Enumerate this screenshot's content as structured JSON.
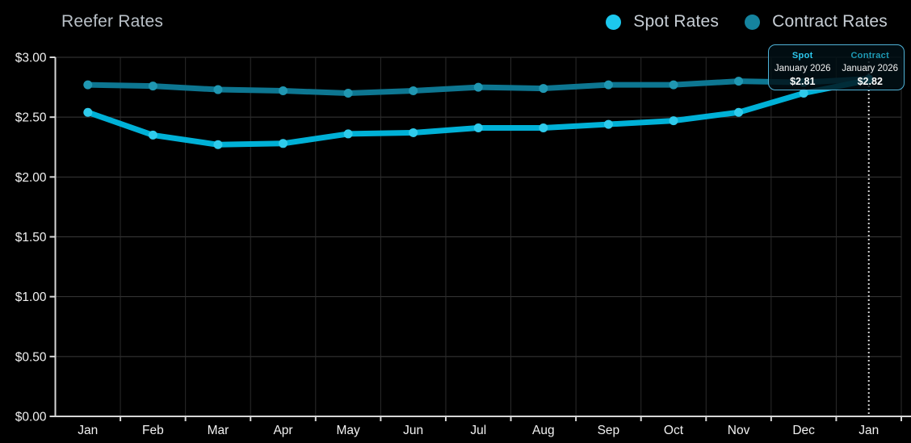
{
  "header": {
    "title": "Reefer Rates"
  },
  "legend": {
    "items": [
      {
        "label": "Spot Rates",
        "color": "#1cc8ee"
      },
      {
        "label": "Contract Rates",
        "color": "#15839e"
      }
    ]
  },
  "tooltip": {
    "columns": [
      {
        "series": "Spot",
        "date": "January 2026",
        "value": "$2.81",
        "color": "#2cc9ef"
      },
      {
        "series": "Contract",
        "date": "January 2026",
        "value": "$2.82",
        "color": "#1e9ab5"
      }
    ]
  },
  "chart_data": {
    "type": "line",
    "title": "Reefer Rates",
    "categories": [
      "Jan",
      "Feb",
      "Mar",
      "Apr",
      "May",
      "Jun",
      "Jul",
      "Aug",
      "Sep",
      "Oct",
      "Nov",
      "Dec",
      "Jan"
    ],
    "series": [
      {
        "name": "Spot Rates",
        "color": "#00b1d7",
        "marker_color": "#2fcbec",
        "values": [
          2.54,
          2.35,
          2.27,
          2.28,
          2.36,
          2.37,
          2.41,
          2.41,
          2.44,
          2.47,
          2.54,
          2.7,
          2.81
        ]
      },
      {
        "name": "Contract Rates",
        "color": "#0d7691",
        "marker_color": "#2097b2",
        "values": [
          2.77,
          2.76,
          2.73,
          2.72,
          2.7,
          2.72,
          2.75,
          2.74,
          2.77,
          2.77,
          2.8,
          2.79,
          2.82
        ]
      }
    ],
    "ylim": [
      0,
      3
    ],
    "ytick_step": 0.5,
    "ytick_labels": [
      "$0.00",
      "$0.50",
      "$1.00",
      "$1.50",
      "$2.00",
      "$2.50",
      "$3.00"
    ],
    "xlabel": "",
    "ylabel": "",
    "grid": true,
    "legend_position": "top-right",
    "highlight_index": 12,
    "highlight_label": "January 2026"
  }
}
